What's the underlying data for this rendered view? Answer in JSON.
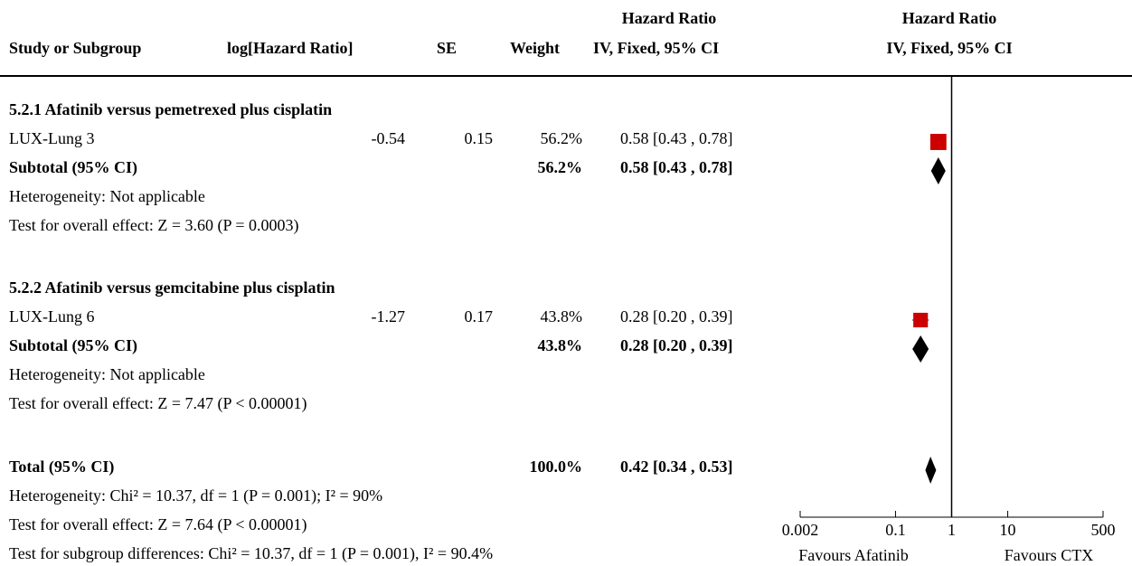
{
  "headers": {
    "study": "Study or Subgroup",
    "loghr": "log[Hazard Ratio]",
    "se": "SE",
    "weight": "Weight",
    "hr_top": "Hazard Ratio",
    "hr_sub": "IV, Fixed, 95% CI",
    "plot_top": "Hazard Ratio",
    "plot_sub": "IV, Fixed, 95% CI"
  },
  "groups": [
    {
      "title": "5.2.1 Afatinib versus pemetrexed plus cisplatin",
      "study": {
        "name": "LUX-Lung 3",
        "loghr": "-0.54",
        "se": "0.15",
        "weight": "56.2%",
        "ci": "0.58 [0.43 , 0.78]"
      },
      "subtotal": {
        "label": "Subtotal (95% CI)",
        "weight": "56.2%",
        "ci": "0.58 [0.43 , 0.78]"
      },
      "heterogeneity": "Heterogeneity: Not applicable",
      "effect": "Test for overall effect: Z = 3.60 (P = 0.0003)"
    },
    {
      "title": "5.2.2 Afatinib versus gemcitabine plus cisplatin",
      "study": {
        "name": "LUX-Lung 6",
        "loghr": "-1.27",
        "se": "0.17",
        "weight": "43.8%",
        "ci": "0.28 [0.20 , 0.39]"
      },
      "subtotal": {
        "label": "Subtotal (95% CI)",
        "weight": "43.8%",
        "ci": "0.28 [0.20 , 0.39]"
      },
      "heterogeneity": "Heterogeneity: Not applicable",
      "effect": "Test for overall effect: Z = 7.47 (P < 0.00001)"
    }
  ],
  "total": {
    "label": "Total (95% CI)",
    "weight": "100.0%",
    "ci": "0.42 [0.34 , 0.53]",
    "heterogeneity": "Heterogeneity: Chi² = 10.37, df = 1 (P = 0.001); I² = 90%",
    "effect": "Test for overall effect: Z = 7.64 (P < 0.00001)",
    "subgroup": "Test for subgroup differences: Chi² = 10.37, df = 1 (P = 0.001), I² = 90.4%"
  },
  "axis": {
    "favours_left": "Favours Afatinib",
    "favours_right": "Favours CTX"
  },
  "colors": {
    "study_marker": "#cc0000",
    "diamond": "#000000"
  },
  "chart_data": {
    "type": "forest",
    "scale": "log",
    "xlim": [
      0.002,
      500
    ],
    "ticks": [
      0.002,
      0.1,
      1,
      10,
      500
    ],
    "tick_labels": [
      "0.002",
      "0.1",
      "1",
      "10",
      "500"
    ],
    "null_line": 1,
    "studies": [
      {
        "name": "LUX-Lung 3",
        "hr": 0.58,
        "lo": 0.43,
        "hi": 0.78,
        "weight": 56.2
      },
      {
        "name": "LUX-Lung 6",
        "hr": 0.28,
        "lo": 0.2,
        "hi": 0.39,
        "weight": 43.8
      }
    ],
    "subtotals": [
      {
        "name": "Subtotal 5.2.1",
        "hr": 0.58,
        "lo": 0.43,
        "hi": 0.78
      },
      {
        "name": "Subtotal 5.2.2",
        "hr": 0.28,
        "lo": 0.2,
        "hi": 0.39
      }
    ],
    "total": {
      "name": "Total",
      "hr": 0.42,
      "lo": 0.34,
      "hi": 0.53
    }
  }
}
